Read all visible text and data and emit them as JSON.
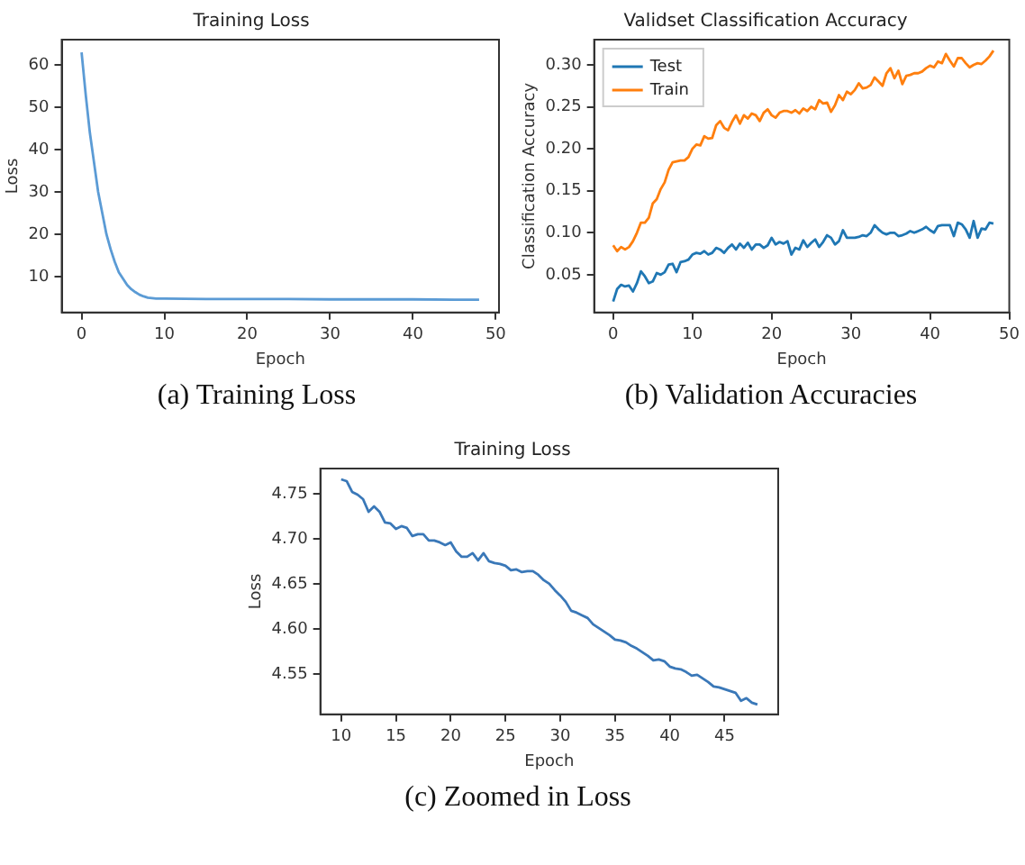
{
  "chart_data": [
    {
      "type": "line",
      "title": "Training Loss",
      "xlabel": "Epoch",
      "ylabel": "Loss",
      "annotations": [
        "(a) Training Loss"
      ],
      "x": [
        0,
        0.5,
        1,
        1.5,
        2,
        2.5,
        3,
        3.5,
        4,
        4.5,
        5,
        5.5,
        6,
        6.5,
        7,
        7.5,
        8,
        8.5,
        9,
        9.5,
        10,
        15,
        20,
        25,
        30,
        35,
        40,
        45,
        48
      ],
      "series": [
        {
          "color": "#5b9bd5",
          "values": [
            63,
            53,
            44,
            37,
            30,
            25,
            20,
            16.5,
            13.5,
            11,
            9.5,
            8,
            7,
            6.3,
            5.7,
            5.3,
            5,
            4.9,
            4.8,
            4.8,
            4.8,
            4.7,
            4.7,
            4.7,
            4.6,
            4.6,
            4.6,
            4.5,
            4.5
          ]
        }
      ],
      "xlim": [
        -2.4,
        50.4
      ],
      "ylim": [
        1.5,
        66
      ],
      "xticks": [
        0,
        10,
        20,
        30,
        40,
        50
      ],
      "yticks": [
        10,
        20,
        30,
        40,
        50,
        60
      ],
      "grid": false,
      "legend": false,
      "marker": "none",
      "line_style": "solid"
    },
    {
      "type": "line",
      "title": "Validset Classification Accuracy",
      "xlabel": "Epoch",
      "ylabel": "Classification Accuracy",
      "annotations": [
        "(b) Validation Accuracies"
      ],
      "x": [
        0,
        0.5,
        1,
        1.5,
        2,
        2.5,
        3,
        3.5,
        4,
        4.5,
        5,
        5.5,
        6,
        6.5,
        7,
        7.5,
        8,
        8.5,
        9,
        9.5,
        10,
        10.5,
        11,
        11.5,
        12,
        12.5,
        13,
        13.5,
        14,
        14.5,
        15,
        15.5,
        16,
        16.5,
        17,
        17.5,
        18,
        18.5,
        19,
        19.5,
        20,
        20.5,
        21,
        21.5,
        22,
        22.5,
        23,
        23.5,
        24,
        24.5,
        25,
        25.5,
        26,
        26.5,
        27,
        27.5,
        28,
        28.5,
        29,
        29.5,
        30,
        30.5,
        31,
        31.5,
        32,
        32.5,
        33,
        33.5,
        34,
        34.5,
        35,
        35.5,
        36,
        36.5,
        37,
        37.5,
        38,
        38.5,
        39,
        39.5,
        40,
        40.5,
        41,
        41.5,
        42,
        42.5,
        43,
        43.5,
        44,
        44.5,
        45,
        45.5,
        46,
        46.5,
        47,
        47.5,
        48
      ],
      "series": [
        {
          "name": "Test",
          "color": "#1f77b4",
          "values": [
            0.018,
            0.033,
            0.038,
            0.036,
            0.037,
            0.03,
            0.04,
            0.054,
            0.048,
            0.04,
            0.042,
            0.052,
            0.05,
            0.053,
            0.062,
            0.063,
            0.053,
            0.065,
            0.066,
            0.068,
            0.074,
            0.076,
            0.075,
            0.078,
            0.074,
            0.076,
            0.082,
            0.08,
            0.076,
            0.082,
            0.086,
            0.08,
            0.087,
            0.082,
            0.088,
            0.08,
            0.086,
            0.086,
            0.082,
            0.085,
            0.094,
            0.086,
            0.089,
            0.087,
            0.09,
            0.074,
            0.082,
            0.08,
            0.091,
            0.083,
            0.088,
            0.092,
            0.083,
            0.089,
            0.097,
            0.094,
            0.086,
            0.09,
            0.103,
            0.094,
            0.094,
            0.094,
            0.095,
            0.097,
            0.096,
            0.1,
            0.109,
            0.104,
            0.1,
            0.098,
            0.1,
            0.1,
            0.096,
            0.097,
            0.099,
            0.102,
            0.1,
            0.102,
            0.104,
            0.107,
            0.103,
            0.1,
            0.108,
            0.109,
            0.109,
            0.109,
            0.096,
            0.112,
            0.11,
            0.104,
            0.094,
            0.114,
            0.094,
            0.105,
            0.104,
            0.112,
            0.111
          ]
        },
        {
          "name": "Train",
          "color": "#ff7f0e",
          "values": [
            0.085,
            0.078,
            0.083,
            0.08,
            0.083,
            0.09,
            0.1,
            0.112,
            0.112,
            0.118,
            0.135,
            0.14,
            0.152,
            0.16,
            0.175,
            0.184,
            0.185,
            0.186,
            0.186,
            0.19,
            0.2,
            0.205,
            0.204,
            0.215,
            0.212,
            0.213,
            0.228,
            0.233,
            0.225,
            0.222,
            0.232,
            0.24,
            0.23,
            0.24,
            0.236,
            0.242,
            0.24,
            0.233,
            0.243,
            0.247,
            0.24,
            0.237,
            0.243,
            0.245,
            0.245,
            0.243,
            0.246,
            0.242,
            0.248,
            0.245,
            0.25,
            0.247,
            0.258,
            0.254,
            0.255,
            0.244,
            0.252,
            0.264,
            0.258,
            0.268,
            0.265,
            0.27,
            0.278,
            0.272,
            0.273,
            0.276,
            0.285,
            0.28,
            0.275,
            0.29,
            0.296,
            0.284,
            0.293,
            0.277,
            0.287,
            0.288,
            0.29,
            0.29,
            0.292,
            0.296,
            0.299,
            0.297,
            0.304,
            0.302,
            0.313,
            0.305,
            0.298,
            0.308,
            0.308,
            0.302,
            0.297,
            0.3,
            0.302,
            0.301,
            0.305,
            0.31,
            0.317
          ]
        }
      ],
      "xlim": [
        -2.4,
        50
      ],
      "ylim": [
        0.005,
        0.33
      ],
      "xticks": [
        0,
        10,
        20,
        30,
        40,
        50
      ],
      "yticks": [
        {
          "value": 0.05,
          "label": "0.05"
        },
        {
          "value": 0.1,
          "label": "0.10"
        },
        {
          "value": 0.15,
          "label": "0.15"
        },
        {
          "value": 0.2,
          "label": "0.20"
        },
        {
          "value": 0.25,
          "label": "0.25"
        },
        {
          "value": 0.3,
          "label": "0.30"
        }
      ],
      "grid": false,
      "legend": "top left",
      "marker": "none",
      "line_style": "solid"
    },
    {
      "type": "line",
      "title": "Training Loss",
      "xlabel": "Epoch",
      "ylabel": "Loss",
      "annotations": [
        "(c) Zoomed in Loss"
      ],
      "x": [
        10,
        10.5,
        11,
        11.5,
        12,
        12.5,
        13,
        13.5,
        14,
        14.5,
        15,
        15.5,
        16,
        16.5,
        17,
        17.5,
        18,
        18.5,
        19,
        19.5,
        20,
        20.5,
        21,
        21.5,
        22,
        22.5,
        23,
        23.5,
        24,
        24.5,
        25,
        25.5,
        26,
        26.5,
        27,
        27.5,
        28,
        28.5,
        29,
        29.5,
        30,
        30.5,
        31,
        31.5,
        32,
        32.5,
        33,
        33.5,
        34,
        34.5,
        35,
        35.5,
        36,
        36.5,
        37,
        37.5,
        38,
        38.5,
        39,
        39.5,
        40,
        40.5,
        41,
        41.5,
        42,
        42.5,
        43,
        43.5,
        44,
        44.5,
        45,
        45.5,
        46,
        46.5,
        47,
        47.5,
        48
      ],
      "series": [
        {
          "color": "#3a78b8",
          "values": [
            4.766,
            4.764,
            4.752,
            4.749,
            4.744,
            4.73,
            4.736,
            4.73,
            4.718,
            4.717,
            4.711,
            4.714,
            4.712,
            4.703,
            4.705,
            4.705,
            4.698,
            4.698,
            4.696,
            4.693,
            4.696,
            4.686,
            4.68,
            4.68,
            4.684,
            4.676,
            4.684,
            4.675,
            4.673,
            4.672,
            4.67,
            4.665,
            4.666,
            4.663,
            4.664,
            4.664,
            4.66,
            4.654,
            4.65,
            4.643,
            4.637,
            4.63,
            4.62,
            4.618,
            4.615,
            4.612,
            4.605,
            4.601,
            4.597,
            4.593,
            4.588,
            4.587,
            4.585,
            4.581,
            4.578,
            4.574,
            4.57,
            4.565,
            4.566,
            4.564,
            4.558,
            4.556,
            4.555,
            4.552,
            4.548,
            4.549,
            4.545,
            4.541,
            4.536,
            4.535,
            4.533,
            4.531,
            4.529,
            4.52,
            4.523,
            4.518,
            4.516
          ]
        }
      ],
      "xlim": [
        8.1,
        49.9
      ],
      "ylim": [
        4.505,
        4.778
      ],
      "xticks": [
        10,
        15,
        20,
        25,
        30,
        35,
        40,
        45
      ],
      "yticks": [
        {
          "value": 4.55,
          "label": "4.55"
        },
        {
          "value": 4.6,
          "label": "4.60"
        },
        {
          "value": 4.65,
          "label": "4.65"
        },
        {
          "value": 4.7,
          "label": "4.70"
        },
        {
          "value": 4.75,
          "label": "4.75"
        }
      ],
      "grid": false,
      "legend": false,
      "marker": "none",
      "line_style": "solid"
    }
  ]
}
